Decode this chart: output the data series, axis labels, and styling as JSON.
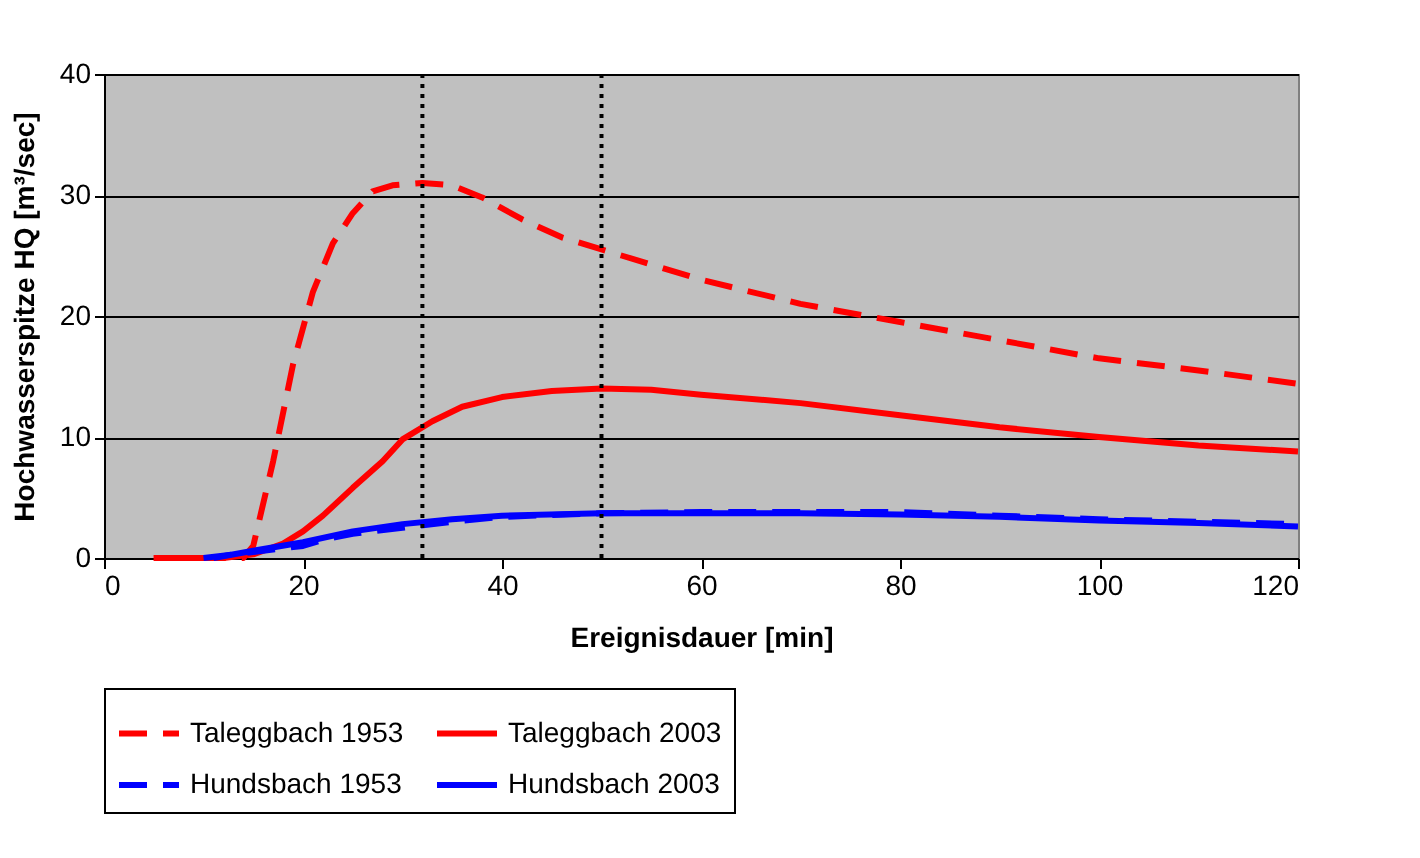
{
  "chart_data": {
    "type": "line",
    "xlabel": "Ereignisdauer [min]",
    "ylabel": "Hochwasserspitze HQ [m³/sec]",
    "xlim": [
      0,
      120
    ],
    "xticks": [
      0,
      20,
      40,
      60,
      80,
      100,
      120
    ],
    "ylim": [
      0,
      40
    ],
    "yticks": [
      0,
      10,
      20,
      30,
      40
    ],
    "grid": "y",
    "legend": "bottom",
    "marker": "none",
    "series": [
      {
        "name": "Taleggbach 1953",
        "color": "#ff0000",
        "line_style": "dashed",
        "x": [
          5,
          14,
          15,
          17,
          19,
          21,
          23,
          25,
          27,
          29,
          32,
          35,
          38,
          42,
          46,
          50,
          52,
          60,
          70,
          80,
          90,
          100,
          110,
          120
        ],
        "values": [
          0,
          0,
          1,
          8,
          16,
          22,
          26,
          28.5,
          30.3,
          30.8,
          31,
          30.8,
          29.8,
          28,
          26.5,
          25.5,
          25,
          23,
          21,
          19.5,
          18,
          16.5,
          15.5,
          14.4
        ]
      },
      {
        "name": "Taleggbach 2003",
        "color": "#ff0000",
        "line_style": "solid",
        "x": [
          5,
          12,
          15,
          18,
          20,
          22,
          25,
          28,
          30,
          33,
          36,
          40,
          45,
          50,
          55,
          60,
          70,
          80,
          90,
          100,
          110,
          120
        ],
        "values": [
          0,
          0,
          0.3,
          1.2,
          2.2,
          3.5,
          5.8,
          8,
          9.8,
          11.3,
          12.5,
          13.3,
          13.8,
          14,
          13.9,
          13.5,
          12.8,
          11.8,
          10.8,
          10,
          9.3,
          8.8
        ]
      },
      {
        "name": "Hundsbach 1953",
        "color": "#0000ff",
        "line_style": "dashed",
        "x": [
          10,
          15,
          20,
          22,
          25,
          30,
          35,
          40,
          50,
          60,
          70,
          80,
          90,
          100,
          110,
          120
        ],
        "values": [
          0,
          0.5,
          1,
          1.5,
          2,
          2.5,
          3,
          3.4,
          3.7,
          3.8,
          3.8,
          3.8,
          3.5,
          3.2,
          3,
          2.8
        ]
      },
      {
        "name": "Hundsbach 2003",
        "color": "#0000ff",
        "line_style": "solid",
        "x": [
          11,
          15,
          20,
          25,
          30,
          35,
          40,
          50,
          60,
          70,
          80,
          90,
          100,
          110,
          120
        ],
        "values": [
          0,
          0.6,
          1.3,
          2.2,
          2.8,
          3.2,
          3.5,
          3.7,
          3.7,
          3.7,
          3.6,
          3.4,
          3.1,
          2.9,
          2.6
        ]
      }
    ],
    "ref_lines": [
      {
        "axis": "x",
        "value": 32,
        "color": "#000000",
        "line_style": "dotted"
      },
      {
        "axis": "x",
        "value": 50,
        "color": "#000000",
        "line_style": "dotted"
      }
    ]
  }
}
